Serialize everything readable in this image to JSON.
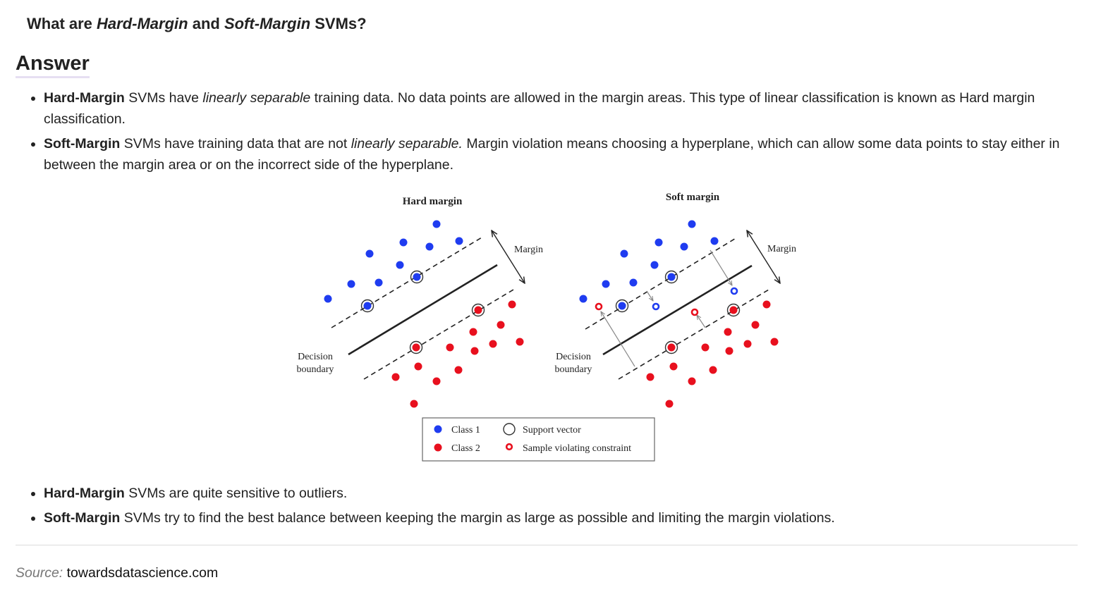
{
  "question": {
    "prefix": "What are ",
    "term_hard": "Hard-Margin",
    "mid": " and ",
    "term_soft": "Soft-Margin",
    "suffix": " SVMs?"
  },
  "answer_heading": "Answer",
  "points_top": [
    {
      "term": "Hard-Margin",
      "text_a": " SVMs have ",
      "emph": "linearly separable",
      "text_b": " training data. No data points are allowed in the margin areas. This type of linear classification is known as Hard margin classification."
    },
    {
      "term": "Soft-Margin",
      "text_a": " SVMs have training data that are not ",
      "emph": "linearly separable.",
      "text_b": " Margin violation means choosing a hyperplane, which can allow some data points to stay either in between the margin area or on the incorrect side of the hyperplane."
    }
  ],
  "figure": {
    "hard_title": "Hard margin",
    "soft_title": "Soft margin",
    "margin_label": "Margin",
    "decision_label_line1": "Decision",
    "decision_label_line2": "boundary",
    "legend": {
      "class1": "Class 1",
      "class2": "Class 2",
      "support_vector": "Support vector",
      "violating": "Sample violating constraint"
    },
    "colors": {
      "class1": "#1f3cf0",
      "class2": "#e8101e"
    }
  },
  "points_bottom": [
    {
      "term": "Hard-Margin",
      "text": " SVMs are quite sensitive to outliers."
    },
    {
      "term": "Soft-Margin",
      "text": " SVMs try to find the best balance between keeping the margin as large as possible and limiting the margin violations."
    }
  ],
  "source": {
    "label": "Source:",
    "site": "towardsdatascience.com"
  }
}
